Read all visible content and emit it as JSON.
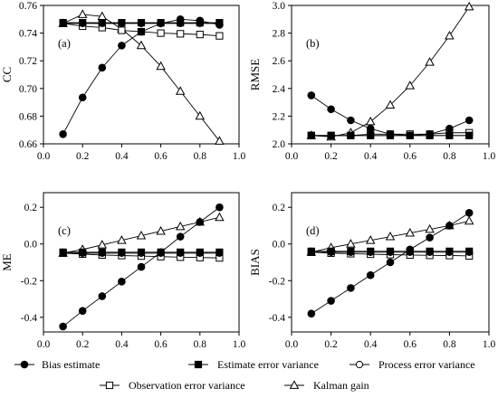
{
  "chart_data": [
    {
      "type": "line",
      "panel_label": "(a)",
      "ylabel": "CC",
      "xlim": [
        0.0,
        1.0
      ],
      "ylim": [
        0.66,
        0.76
      ],
      "xticks": [
        "0.0",
        "0.2",
        "0.4",
        "0.6",
        "0.8",
        "1.0"
      ],
      "yticks": [
        "0.66",
        "0.68",
        "0.70",
        "0.72",
        "0.74",
        "0.76"
      ],
      "x": [
        0.1,
        0.2,
        0.3,
        0.4,
        0.5,
        0.6,
        0.7,
        0.8,
        0.9
      ],
      "series": [
        {
          "name": "Bias estimate",
          "marker": "filled-circle",
          "values": [
            0.667,
            0.6935,
            0.715,
            0.731,
            0.741,
            0.747,
            0.75,
            0.749,
            0.746
          ]
        },
        {
          "name": "Estimate error variance",
          "marker": "filled-square",
          "values": [
            0.7475,
            0.7475,
            0.7475,
            0.7475,
            0.7475,
            0.7475,
            0.7475,
            0.7475,
            0.7475
          ]
        },
        {
          "name": "Process error variance",
          "marker": "open-circle",
          "values": [
            0.747,
            0.747,
            0.747,
            0.747,
            0.747,
            0.747,
            0.747,
            0.747,
            0.747
          ]
        },
        {
          "name": "Observation error variance",
          "marker": "open-square",
          "values": [
            0.747,
            0.745,
            0.744,
            0.742,
            0.741,
            0.74,
            0.7395,
            0.739,
            0.738
          ]
        },
        {
          "name": "Kalman gain",
          "marker": "open-triangle",
          "values": [
            0.747,
            0.7535,
            0.752,
            0.743,
            0.731,
            0.716,
            0.698,
            0.68,
            0.662
          ]
        }
      ]
    },
    {
      "type": "line",
      "panel_label": "(b)",
      "ylabel": "RMSE",
      "xlim": [
        0.0,
        1.0
      ],
      "ylim": [
        2.0,
        3.0
      ],
      "xticks": [
        "0.0",
        "0.2",
        "0.4",
        "0.6",
        "0.8",
        "1.0"
      ],
      "yticks": [
        "2.0",
        "2.2",
        "2.4",
        "2.6",
        "2.8",
        "3.0"
      ],
      "x": [
        0.1,
        0.2,
        0.3,
        0.4,
        0.5,
        0.6,
        0.7,
        0.8,
        0.9
      ],
      "series": [
        {
          "name": "Bias estimate",
          "marker": "filled-circle",
          "values": [
            2.35,
            2.25,
            2.17,
            2.11,
            2.07,
            2.06,
            2.07,
            2.11,
            2.17
          ]
        },
        {
          "name": "Estimate error variance",
          "marker": "filled-square",
          "values": [
            2.06,
            2.06,
            2.06,
            2.06,
            2.06,
            2.06,
            2.06,
            2.06,
            2.06
          ]
        },
        {
          "name": "Process error variance",
          "marker": "open-circle",
          "values": [
            2.06,
            2.06,
            2.06,
            2.06,
            2.06,
            2.06,
            2.06,
            2.06,
            2.06
          ]
        },
        {
          "name": "Observation error variance",
          "marker": "open-square",
          "values": [
            2.06,
            2.06,
            2.06,
            2.07,
            2.07,
            2.07,
            2.07,
            2.08,
            2.08
          ]
        },
        {
          "name": "Kalman gain",
          "marker": "open-triangle",
          "values": [
            2.06,
            2.05,
            2.08,
            2.16,
            2.28,
            2.42,
            2.59,
            2.78,
            2.99
          ]
        }
      ]
    },
    {
      "type": "line",
      "panel_label": "(c)",
      "ylabel": "ME",
      "xlim": [
        0.0,
        1.0
      ],
      "ylim": [
        -0.48,
        0.28
      ],
      "xticks": [
        "0.0",
        "0.2",
        "0.4",
        "0.6",
        "0.8",
        "1.0"
      ],
      "yticks": [
        "0.2",
        "0.0",
        "-0.2",
        "-0.4"
      ],
      "ytick_values": [
        0.2,
        0.0,
        -0.2,
        -0.4
      ],
      "x": [
        0.1,
        0.2,
        0.3,
        0.4,
        0.5,
        0.6,
        0.7,
        0.8,
        0.9
      ],
      "series": [
        {
          "name": "Bias estimate",
          "marker": "filled-circle",
          "values": [
            -0.45,
            -0.365,
            -0.285,
            -0.205,
            -0.125,
            -0.045,
            0.04,
            0.12,
            0.2
          ]
        },
        {
          "name": "Estimate error variance",
          "marker": "filled-square",
          "values": [
            -0.045,
            -0.045,
            -0.045,
            -0.045,
            -0.045,
            -0.045,
            -0.045,
            -0.045,
            -0.045
          ]
        },
        {
          "name": "Process error variance",
          "marker": "open-circle",
          "values": [
            -0.05,
            -0.05,
            -0.05,
            -0.05,
            -0.05,
            -0.05,
            -0.05,
            -0.05,
            -0.05
          ]
        },
        {
          "name": "Observation error variance",
          "marker": "open-square",
          "values": [
            -0.05,
            -0.055,
            -0.06,
            -0.063,
            -0.066,
            -0.069,
            -0.072,
            -0.074,
            -0.076
          ]
        },
        {
          "name": "Kalman gain",
          "marker": "open-triangle",
          "values": [
            -0.05,
            -0.03,
            -0.005,
            0.02,
            0.045,
            0.07,
            0.095,
            0.12,
            0.145
          ]
        }
      ]
    },
    {
      "type": "line",
      "panel_label": "(d)",
      "ylabel": "BIAS",
      "xlim": [
        0.0,
        1.0
      ],
      "ylim": [
        -0.48,
        0.28
      ],
      "xticks": [
        "0.0",
        "0.2",
        "0.4",
        "0.6",
        "0.8",
        "1.0"
      ],
      "yticks": [
        "0.2",
        "0.0",
        "-0.2",
        "-0.4"
      ],
      "ytick_values": [
        0.2,
        0.0,
        -0.2,
        -0.4
      ],
      "x": [
        0.1,
        0.2,
        0.3,
        0.4,
        0.5,
        0.6,
        0.7,
        0.8,
        0.9
      ],
      "series": [
        {
          "name": "Bias estimate",
          "marker": "filled-circle",
          "values": [
            -0.38,
            -0.31,
            -0.24,
            -0.17,
            -0.1,
            -0.03,
            0.035,
            0.1,
            0.17
          ]
        },
        {
          "name": "Estimate error variance",
          "marker": "filled-square",
          "values": [
            -0.04,
            -0.04,
            -0.04,
            -0.04,
            -0.04,
            -0.04,
            -0.04,
            -0.04,
            -0.04
          ]
        },
        {
          "name": "Process error variance",
          "marker": "open-circle",
          "values": [
            -0.045,
            -0.045,
            -0.045,
            -0.045,
            -0.045,
            -0.045,
            -0.045,
            -0.045,
            -0.045
          ]
        },
        {
          "name": "Observation error variance",
          "marker": "open-square",
          "values": [
            -0.045,
            -0.05,
            -0.053,
            -0.056,
            -0.058,
            -0.06,
            -0.062,
            -0.063,
            -0.065
          ]
        },
        {
          "name": "Kalman gain",
          "marker": "open-triangle",
          "values": [
            -0.045,
            -0.02,
            0.0,
            0.02,
            0.04,
            0.06,
            0.08,
            0.1,
            0.125
          ]
        }
      ]
    }
  ],
  "legend": [
    {
      "label": "Bias estimate",
      "marker": "filled-circle"
    },
    {
      "label": "Estimate error variance",
      "marker": "filled-square"
    },
    {
      "label": "Process error variance",
      "marker": "open-circle"
    },
    {
      "label": "Observation error variance",
      "marker": "open-square"
    },
    {
      "label": "Kalman gain",
      "marker": "open-triangle"
    }
  ]
}
